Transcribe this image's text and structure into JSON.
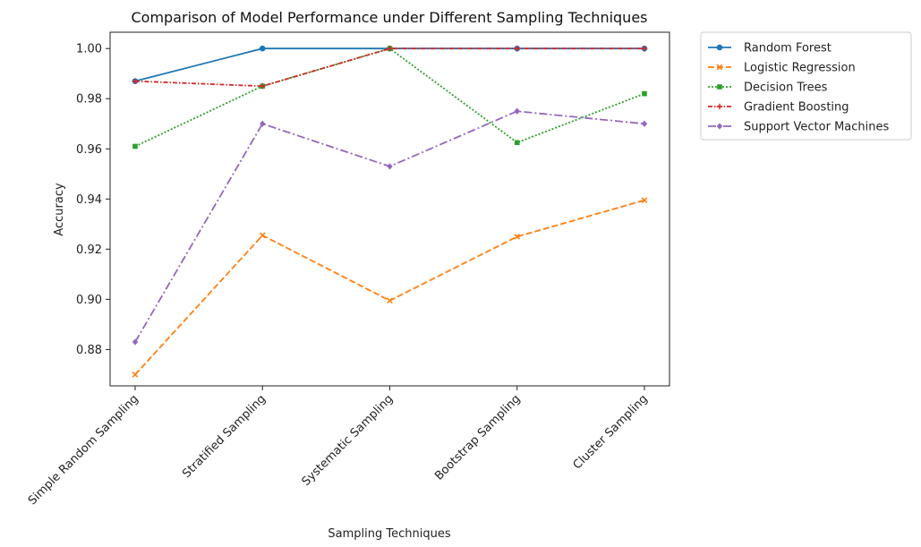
{
  "chart_data": {
    "type": "line",
    "title": "Comparison of Model Performance under Different Sampling Techniques",
    "xlabel": "Sampling Techniques",
    "ylabel": "Accuracy",
    "categories": [
      "Simple Random Sampling",
      "Stratified Sampling",
      "Systematic Sampling",
      "Bootstrap Sampling",
      "Cluster Sampling"
    ],
    "ylim": [
      0.8655,
      1.0065
    ],
    "yticks": [
      "0.88",
      "0.90",
      "0.92",
      "0.94",
      "0.96",
      "0.98",
      "1.00"
    ],
    "grid": false,
    "legend_position": "outside-right",
    "series": [
      {
        "name": "Random Forest",
        "values": [
          0.987,
          1.0,
          1.0,
          1.0,
          1.0
        ],
        "color": "#1f77b4",
        "marker": "circle",
        "dash": "solid"
      },
      {
        "name": "Logistic Regression",
        "values": [
          0.87,
          0.9255,
          0.8995,
          0.925,
          0.9395
        ],
        "color": "#ff7f0e",
        "marker": "x",
        "dash": "dashed"
      },
      {
        "name": "Decision Trees",
        "values": [
          0.961,
          0.985,
          1.0,
          0.9625,
          0.982
        ],
        "color": "#2ca02c",
        "marker": "square",
        "dash": "dotted"
      },
      {
        "name": "Gradient Boosting",
        "values": [
          0.987,
          0.985,
          1.0,
          1.0,
          1.0
        ],
        "color": "#d62728",
        "marker": "plus",
        "dash": "dashdot-short"
      },
      {
        "name": "Support Vector Machines",
        "values": [
          0.883,
          0.97,
          0.953,
          0.975,
          0.97
        ],
        "color": "#9467bd",
        "marker": "diamond",
        "dash": "dashdot"
      }
    ]
  }
}
